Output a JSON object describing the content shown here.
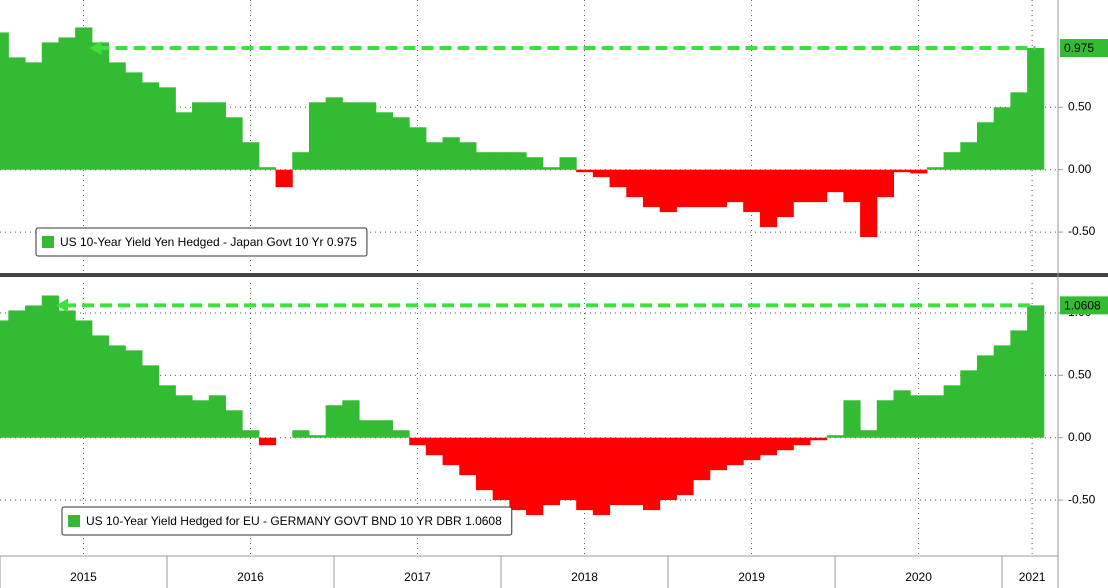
{
  "chart_data": [
    {
      "type": "bar",
      "color": "#33bb33",
      "negative_color": "#ff0000",
      "series": [
        {
          "name": "US 10-Year Yield Yen Hedged - Japan Govt 10 Yr",
          "color": "#33bb33",
          "x": [
            2015.0,
            2015.1,
            2015.2,
            2015.3,
            2015.4,
            2015.5,
            2015.6,
            2015.7,
            2015.8,
            2015.9,
            2016.0,
            2016.1,
            2016.2,
            2016.3,
            2016.4,
            2016.5,
            2016.6,
            2016.7,
            2016.8,
            2016.9,
            2017.0,
            2017.1,
            2017.2,
            2017.3,
            2017.4,
            2017.5,
            2017.6,
            2017.7,
            2017.8,
            2017.9,
            2018.0,
            2018.1,
            2018.2,
            2018.3,
            2018.4,
            2018.5,
            2018.6,
            2018.7,
            2018.8,
            2018.9,
            2019.0,
            2019.1,
            2019.2,
            2019.3,
            2019.4,
            2019.5,
            2019.6,
            2019.7,
            2019.8,
            2019.9,
            2020.0,
            2020.1,
            2020.2,
            2020.3,
            2020.4,
            2020.5,
            2020.6,
            2020.7,
            2020.8,
            2020.9,
            2021.0,
            2021.1,
            2021.2
          ],
          "values": [
            1.1,
            0.9,
            0.86,
            1.02,
            1.06,
            1.14,
            1.02,
            0.86,
            0.78,
            0.7,
            0.66,
            0.46,
            0.54,
            0.54,
            0.42,
            0.22,
            0.02,
            -0.14,
            0.14,
            0.54,
            0.58,
            0.54,
            0.54,
            0.46,
            0.42,
            0.34,
            0.22,
            0.26,
            0.22,
            0.14,
            0.14,
            0.14,
            0.1,
            0.02,
            0.1,
            -0.02,
            -0.06,
            -0.14,
            -0.22,
            -0.3,
            -0.34,
            -0.3,
            -0.3,
            -0.3,
            -0.26,
            -0.34,
            -0.46,
            -0.38,
            -0.26,
            -0.26,
            -0.18,
            -0.26,
            -0.54,
            -0.22,
            -0.02,
            -0.03,
            0.02,
            0.14,
            0.22,
            0.38,
            0.5,
            0.62,
            0.975
          ]
        }
      ],
      "xlim": [
        2015,
        2021.335
      ],
      "xticks": [
        {
          "value": 2015.5,
          "label": "2015"
        },
        {
          "value": 2016.5,
          "label": "2016"
        },
        {
          "value": 2017.5,
          "label": "2017"
        },
        {
          "value": 2018.5,
          "label": "2018"
        },
        {
          "value": 2019.5,
          "label": "2019"
        },
        {
          "value": 2020.5,
          "label": "2020"
        },
        {
          "value": 2021.18,
          "label": "2021"
        }
      ],
      "ylim": [
        -0.82,
        1.36
      ],
      "yticks": [
        {
          "value": -0.5,
          "label": "-0.50"
        },
        {
          "value": 0,
          "label": "0.00"
        },
        {
          "value": 0.5,
          "label": "0.50"
        }
      ],
      "grid": true
    },
    {
      "type": "bar",
      "color": "#33bb33",
      "negative_color": "#ff0000",
      "series": [
        {
          "name": "US 10-Year Yield Hedged for EU - GERMANY GOVT BND 10 YR DBR",
          "color": "#33bb33",
          "x": [
            2015.0,
            2015.1,
            2015.2,
            2015.3,
            2015.4,
            2015.5,
            2015.6,
            2015.7,
            2015.8,
            2015.9,
            2016.0,
            2016.1,
            2016.2,
            2016.3,
            2016.4,
            2016.5,
            2016.6,
            2016.7,
            2016.8,
            2016.9,
            2017.0,
            2017.1,
            2017.2,
            2017.3,
            2017.4,
            2017.5,
            2017.6,
            2017.7,
            2017.8,
            2017.9,
            2018.0,
            2018.1,
            2018.2,
            2018.3,
            2018.4,
            2018.5,
            2018.6,
            2018.7,
            2018.8,
            2018.9,
            2019.0,
            2019.1,
            2019.2,
            2019.3,
            2019.4,
            2019.5,
            2019.6,
            2019.7,
            2019.8,
            2019.9,
            2020.0,
            2020.1,
            2020.2,
            2020.3,
            2020.4,
            2020.5,
            2020.6,
            2020.7,
            2020.8,
            2020.9,
            2021.0,
            2021.1,
            2021.2
          ],
          "values": [
            0.94,
            1.02,
            1.06,
            1.14,
            1.02,
            0.94,
            0.82,
            0.74,
            0.7,
            0.58,
            0.42,
            0.34,
            0.3,
            0.34,
            0.22,
            0.06,
            -0.06,
            0,
            0.06,
            0.02,
            0.26,
            0.3,
            0.14,
            0.14,
            0.06,
            -0.06,
            -0.14,
            -0.22,
            -0.3,
            -0.42,
            -0.5,
            -0.58,
            -0.62,
            -0.54,
            -0.5,
            -0.58,
            -0.62,
            -0.54,
            -0.54,
            -0.58,
            -0.5,
            -0.46,
            -0.34,
            -0.26,
            -0.22,
            -0.18,
            -0.14,
            -0.1,
            -0.06,
            -0.02,
            0.02,
            0.3,
            0.06,
            0.3,
            0.38,
            0.34,
            0.34,
            0.42,
            0.54,
            0.66,
            0.74,
            0.86,
            1.0608
          ]
        }
      ],
      "xlim": [
        2015,
        2021.335
      ],
      "xticks": [
        {
          "value": 2015.5,
          "label": "2015"
        },
        {
          "value": 2016.5,
          "label": "2016"
        },
        {
          "value": 2017.5,
          "label": "2017"
        },
        {
          "value": 2018.5,
          "label": "2018"
        },
        {
          "value": 2019.5,
          "label": "2019"
        },
        {
          "value": 2020.5,
          "label": "2020"
        },
        {
          "value": 2021.18,
          "label": "2021"
        }
      ],
      "ylim": [
        -0.94,
        1.24
      ],
      "yticks": [
        {
          "value": -0.5,
          "label": "-0.50"
        },
        {
          "value": 0,
          "label": "0.00"
        },
        {
          "value": 0.5,
          "label": "0.50"
        },
        {
          "value": 1,
          "label": "1.00"
        }
      ],
      "grid": true
    }
  ]
}
